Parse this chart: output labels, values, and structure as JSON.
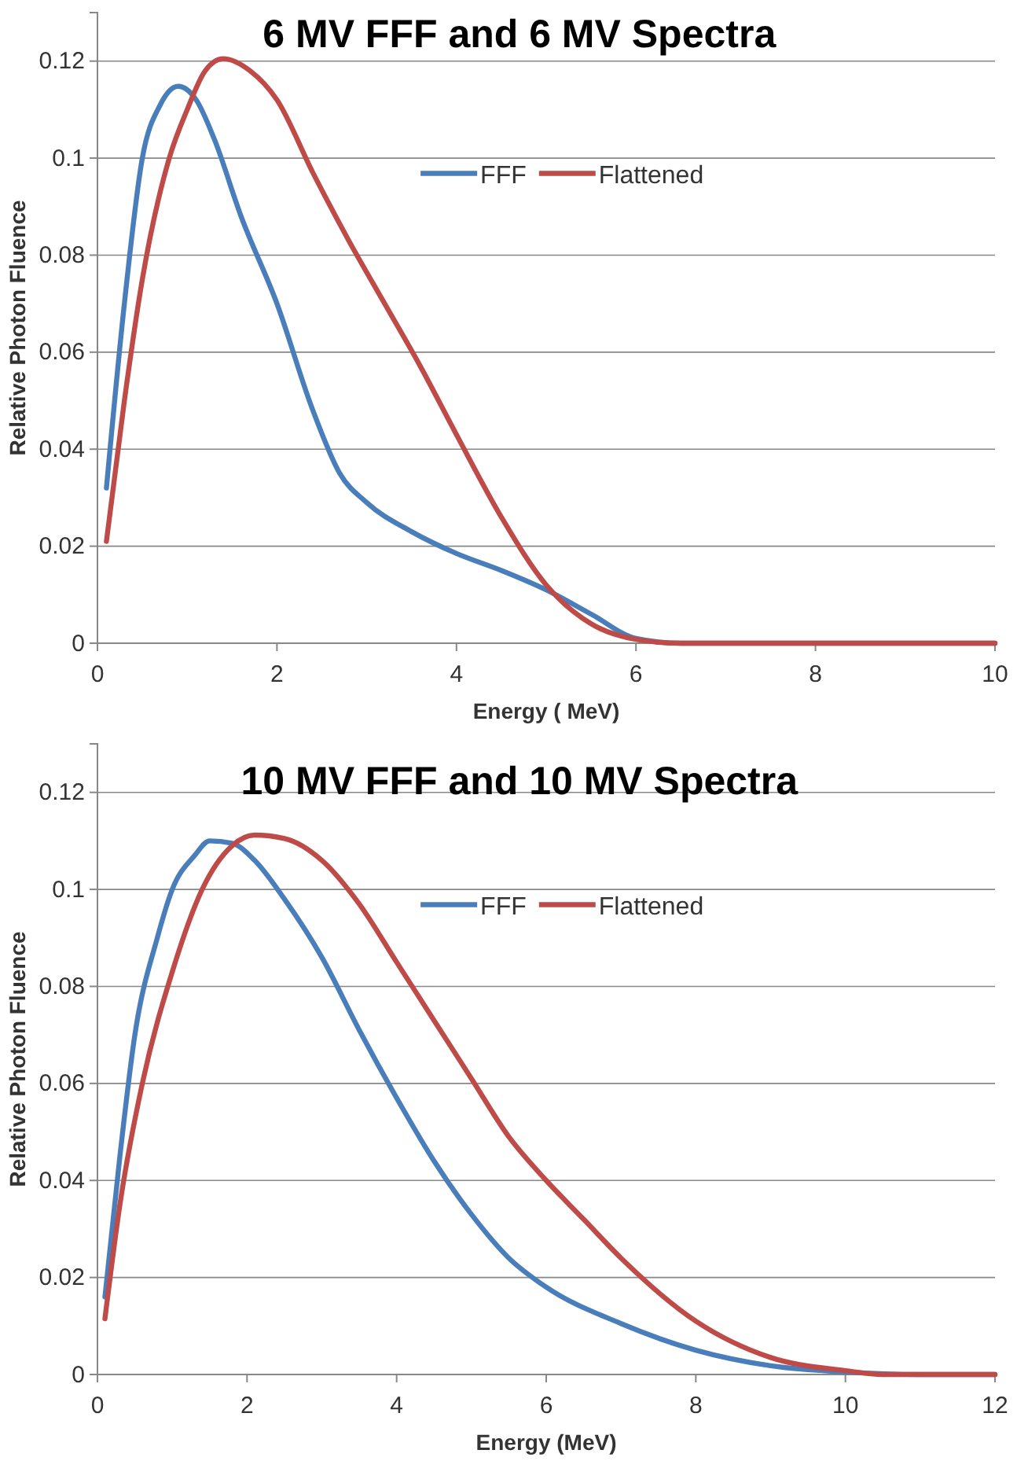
{
  "chart_data": [
    {
      "type": "line",
      "title": "6 MV FFF and 6 MV Spectra",
      "xlabel": "Energy ( MeV)",
      "ylabel": "Relative Photon Fluence",
      "xlim": [
        0,
        10
      ],
      "xticks": [
        0,
        2,
        4,
        6,
        8,
        10
      ],
      "ylim": [
        0,
        0.13
      ],
      "yticks": [
        0,
        0.02,
        0.04,
        0.06,
        0.08,
        0.1,
        0.12
      ],
      "grid": "y",
      "legend": "top",
      "marker": "none",
      "line_style": "solid",
      "series": [
        {
          "name": "FFF",
          "color": "#4a7ebb",
          "x": [
            0.1,
            0.3,
            0.5,
            0.7,
            0.9,
            1.1,
            1.3,
            1.6,
            2,
            2.4,
            2.7,
            3,
            3.5,
            4,
            4.5,
            5,
            5.5,
            6,
            6.5,
            7,
            10
          ],
          "values": [
            0.032,
            0.07,
            0.1,
            0.111,
            0.1148,
            0.112,
            0.104,
            0.088,
            0.07,
            0.048,
            0.035,
            0.029,
            0.023,
            0.0185,
            0.015,
            0.011,
            0.006,
            0.001,
            0,
            0,
            0
          ]
        },
        {
          "name": "Flattened",
          "color": "#be4b48",
          "x": [
            0.1,
            0.3,
            0.5,
            0.8,
            1,
            1.2,
            1.4,
            1.7,
            2,
            2.4,
            2.8,
            3.2,
            3.6,
            4,
            4.5,
            5,
            5.5,
            6,
            6.5,
            10
          ],
          "values": [
            0.021,
            0.05,
            0.075,
            0.1,
            0.11,
            0.118,
            0.1205,
            0.118,
            0.112,
            0.097,
            0.083,
            0.07,
            0.057,
            0.043,
            0.026,
            0.012,
            0.004,
            0.0008,
            0,
            0
          ]
        }
      ]
    },
    {
      "type": "line",
      "title": "10 MV FFF and 10 MV Spectra",
      "xlabel": "Energy (MeV)",
      "ylabel": "Relative Photon Fluence",
      "xlim": [
        0,
        12
      ],
      "xticks": [
        0,
        2,
        4,
        6,
        8,
        10,
        12
      ],
      "ylim": [
        0,
        0.13
      ],
      "yticks": [
        0,
        0.02,
        0.04,
        0.06,
        0.08,
        0.1,
        0.12
      ],
      "grid": "y",
      "legend": "top",
      "marker": "none",
      "line_style": "solid",
      "series": [
        {
          "name": "FFF",
          "color": "#4a7ebb",
          "x": [
            0.1,
            0.3,
            0.5,
            0.8,
            1,
            1.3,
            1.5,
            1.8,
            2.1,
            2.5,
            3,
            3.5,
            4,
            4.5,
            5,
            5.5,
            6,
            7,
            8,
            9,
            10,
            11,
            12
          ],
          "values": [
            0.016,
            0.045,
            0.07,
            0.09,
            0.1,
            0.107,
            0.11,
            0.1095,
            0.106,
            0.098,
            0.086,
            0.071,
            0.057,
            0.044,
            0.033,
            0.024,
            0.018,
            0.0105,
            0.005,
            0.0018,
            0.0005,
            0,
            0
          ]
        },
        {
          "name": "Flattened",
          "color": "#be4b48",
          "x": [
            0.1,
            0.3,
            0.6,
            1,
            1.4,
            1.8,
            2.1,
            2.5,
            3,
            3.5,
            4,
            4.5,
            5,
            5.5,
            6,
            6.5,
            7,
            8,
            9,
            10,
            10.5,
            12
          ],
          "values": [
            0.0115,
            0.035,
            0.06,
            0.083,
            0.1,
            0.109,
            0.1112,
            0.1105,
            0.106,
            0.097,
            0.085,
            0.073,
            0.061,
            0.049,
            0.04,
            0.032,
            0.024,
            0.011,
            0.0035,
            0.0008,
            0,
            0
          ]
        }
      ]
    }
  ]
}
